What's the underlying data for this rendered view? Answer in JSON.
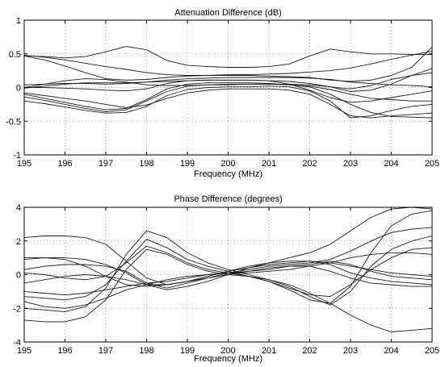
{
  "chart_data": [
    {
      "type": "line",
      "title": "Attenuation Difference (dB)",
      "xlabel": "Frequency (MHz)",
      "ylabel": "",
      "xlim": [
        195,
        205
      ],
      "ylim": [
        -1,
        1
      ],
      "xticks": [
        "195",
        "196",
        "197",
        "198",
        "199",
        "200",
        "201",
        "202",
        "203",
        "204",
        "205"
      ],
      "yticks": [
        "1",
        "0.5",
        "0",
        "-0.5",
        "-1"
      ],
      "grid": true,
      "x": [
        195,
        195.5,
        196,
        196.5,
        197,
        197.5,
        198,
        198.5,
        199,
        199.5,
        200,
        200.5,
        201,
        201.5,
        202,
        202.5,
        203,
        203.5,
        204,
        204.5,
        205
      ],
      "series": [
        {
          "values": [
            0.47,
            0.46,
            0.44,
            0.46,
            0.53,
            0.61,
            0.56,
            0.4,
            0.33,
            0.31,
            0.3,
            0.3,
            0.31,
            0.35,
            0.47,
            0.57,
            0.53,
            0.5,
            0.5,
            0.49,
            0.49
          ]
        },
        {
          "values": [
            0.48,
            0.45,
            0.41,
            0.36,
            0.31,
            0.27,
            0.22,
            0.19,
            0.18,
            0.18,
            0.19,
            0.19,
            0.2,
            0.21,
            0.23,
            0.25,
            0.29,
            0.35,
            0.42,
            0.48,
            0.54
          ]
        },
        {
          "values": [
            0.47,
            0.41,
            0.32,
            0.22,
            0.13,
            0.11,
            0.12,
            0.15,
            0.17,
            0.18,
            0.18,
            0.18,
            0.17,
            0.16,
            0.15,
            0.11,
            0.09,
            0.11,
            0.18,
            0.3,
            0.6
          ]
        },
        {
          "values": [
            0.04,
            0.05,
            0.06,
            0.06,
            0.05,
            0.06,
            0.08,
            0.11,
            0.13,
            0.14,
            0.15,
            0.15,
            0.15,
            0.15,
            0.14,
            0.12,
            0.08,
            0.06,
            0.04,
            0.03,
            0.01
          ]
        },
        {
          "values": [
            -0.01,
            0.02,
            0.05,
            0.07,
            0.07,
            0.07,
            0.08,
            0.09,
            0.1,
            0.11,
            0.11,
            0.11,
            0.1,
            0.09,
            0.06,
            0.01,
            -0.06,
            -0.04,
            0.05,
            0.18,
            0.28
          ]
        },
        {
          "values": [
            0.0,
            0.05,
            0.1,
            0.13,
            0.12,
            0.08,
            0.04,
            0.03,
            0.03,
            0.04,
            0.04,
            0.05,
            0.05,
            0.05,
            0.04,
            0.01,
            -0.02,
            0.03,
            0.12,
            0.18,
            0.22
          ]
        },
        {
          "values": [
            0.0,
            0.0,
            -0.01,
            -0.02,
            -0.04,
            -0.05,
            -0.02,
            0.06,
            0.1,
            0.11,
            0.11,
            0.11,
            0.1,
            0.05,
            -0.04,
            -0.15,
            -0.22,
            -0.2,
            -0.15,
            -0.1,
            -0.05
          ]
        },
        {
          "values": [
            -0.1,
            -0.16,
            -0.22,
            -0.28,
            -0.33,
            -0.31,
            -0.18,
            -0.02,
            0.05,
            0.07,
            0.07,
            0.07,
            0.06,
            0.04,
            0.02,
            -0.03,
            -0.1,
            -0.16,
            -0.18,
            -0.2,
            -0.2
          ]
        },
        {
          "values": [
            -0.14,
            -0.19,
            -0.25,
            -0.31,
            -0.36,
            -0.33,
            -0.2,
            -0.06,
            0.02,
            0.04,
            0.05,
            0.05,
            0.05,
            0.04,
            0.01,
            -0.1,
            -0.25,
            -0.37,
            -0.43,
            -0.44,
            -0.45
          ]
        },
        {
          "values": [
            -0.2,
            -0.24,
            -0.29,
            -0.34,
            -0.38,
            -0.37,
            -0.28,
            -0.12,
            -0.03,
            0.0,
            0.01,
            0.01,
            0.02,
            0.01,
            -0.05,
            -0.2,
            -0.45,
            -0.42,
            -0.34,
            -0.28,
            -0.25
          ]
        },
        {
          "values": [
            -0.08,
            -0.12,
            -0.16,
            -0.2,
            -0.25,
            -0.3,
            -0.26,
            -0.16,
            -0.08,
            -0.04,
            -0.02,
            -0.02,
            -0.02,
            -0.04,
            -0.1,
            -0.25,
            -0.42,
            -0.45,
            -0.42,
            -0.4,
            -0.38
          ]
        }
      ]
    },
    {
      "type": "line",
      "title": "Phase Difference (degrees)",
      "xlabel": "Frequency (MHz)",
      "ylabel": "",
      "xlim": [
        195,
        205
      ],
      "ylim": [
        -4,
        4
      ],
      "xticks": [
        "195",
        "196",
        "197",
        "198",
        "199",
        "200",
        "201",
        "202",
        "203",
        "204",
        "205"
      ],
      "yticks": [
        "4",
        "2",
        "0",
        "-2",
        "-4"
      ],
      "grid": true,
      "x": [
        195,
        195.5,
        196,
        196.5,
        197,
        197.5,
        198,
        198.5,
        199,
        199.5,
        200,
        200.5,
        201,
        201.5,
        202,
        202.5,
        203,
        203.5,
        204,
        204.5,
        205
      ],
      "series": [
        {
          "values": [
            2.2,
            2.3,
            2.3,
            2.2,
            1.8,
            0.8,
            -0.2,
            -0.6,
            -0.4,
            -0.1,
            0.2,
            0.4,
            0.6,
            0.7,
            0.8,
            0.6,
            0.1,
            -0.2,
            -0.4,
            -0.5,
            -0.6
          ]
        },
        {
          "values": [
            1.0,
            1.0,
            1.0,
            0.9,
            0.6,
            0.1,
            -0.6,
            -0.9,
            -0.7,
            -0.4,
            0.0,
            0.4,
            0.7,
            1.0,
            1.3,
            1.8,
            2.6,
            3.4,
            3.9,
            4.0,
            3.9
          ]
        },
        {
          "values": [
            0.3,
            0.5,
            0.6,
            0.6,
            0.5,
            0.2,
            -0.5,
            -0.8,
            -0.5,
            -0.2,
            0.1,
            0.3,
            0.5,
            0.6,
            0.7,
            0.9,
            1.4,
            2.0,
            2.5,
            2.7,
            2.8
          ]
        },
        {
          "values": [
            -0.5,
            -0.3,
            -0.1,
            0.0,
            -0.1,
            -0.3,
            -0.6,
            -0.6,
            -0.4,
            -0.1,
            0.2,
            0.5,
            0.7,
            0.8,
            0.8,
            0.7,
            0.5,
            0.3,
            0.1,
            0.0,
            -0.1
          ]
        },
        {
          "values": [
            0.1,
            0.0,
            -0.2,
            -0.3,
            -0.1,
            0.7,
            1.7,
            1.3,
            0.7,
            0.3,
            0.1,
            -0.1,
            -0.3,
            -0.6,
            -1.1,
            -1.7,
            -2.4,
            -3.0,
            -3.4,
            -3.3,
            -3.2
          ]
        },
        {
          "values": [
            -1.3,
            -1.4,
            -1.5,
            -1.3,
            -0.6,
            0.8,
            2.1,
            1.6,
            0.9,
            0.5,
            0.2,
            -0.1,
            -0.4,
            -0.8,
            -1.2,
            -1.3,
            -0.6,
            0.3,
            1.0,
            1.5,
            1.6
          ]
        },
        {
          "values": [
            -2.0,
            -2.1,
            -2.2,
            -1.9,
            -0.8,
            1.2,
            2.6,
            2.2,
            1.3,
            0.7,
            0.3,
            0.0,
            -0.3,
            -0.7,
            -1.3,
            -1.8,
            -1.0,
            0.5,
            1.5,
            2.0,
            2.3
          ]
        },
        {
          "values": [
            -2.7,
            -2.8,
            -2.8,
            -2.5,
            -1.5,
            0.3,
            1.5,
            1.2,
            0.6,
            0.2,
            0.0,
            -0.1,
            -0.4,
            -0.9,
            -1.5,
            -1.7,
            -0.7,
            1.3,
            2.9,
            3.6,
            3.8
          ]
        },
        {
          "values": [
            -1.6,
            -1.9,
            -2.0,
            -1.8,
            -1.4,
            -0.9,
            -0.6,
            -0.3,
            -0.1,
            0.0,
            0.1,
            0.1,
            0.2,
            0.3,
            0.5,
            0.7,
            1.0,
            1.2,
            1.3,
            1.3,
            1.2
          ]
        },
        {
          "values": [
            0.9,
            1.0,
            0.9,
            0.5,
            -0.1,
            -0.6,
            -0.7,
            -0.6,
            -0.4,
            -0.2,
            0.0,
            0.2,
            0.4,
            0.5,
            0.5,
            0.2,
            -0.2,
            -0.5,
            -0.6,
            -0.7,
            -0.7
          ]
        },
        {
          "values": [
            -1.0,
            -1.1,
            -1.2,
            -1.1,
            -0.9,
            -0.7,
            -0.5,
            -0.4,
            -0.2,
            0.0,
            0.1,
            0.2,
            0.3,
            0.5,
            0.6,
            0.8,
            0.6,
            0.2,
            -0.1,
            -0.2,
            -0.3
          ]
        }
      ]
    }
  ]
}
